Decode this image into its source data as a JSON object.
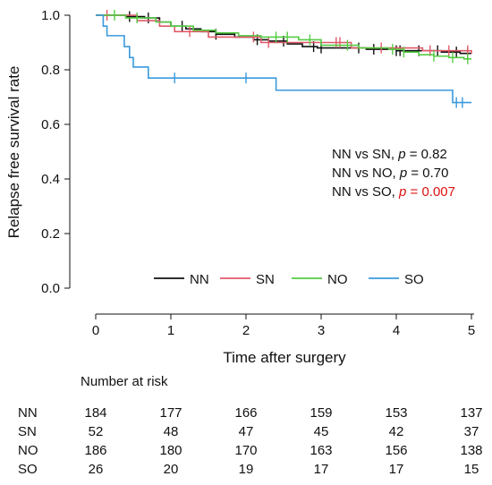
{
  "chart_data": {
    "type": "line",
    "xlabel": "Time after surgery",
    "ylabel": "Relapse free survival rate",
    "xlim": [
      0,
      5
    ],
    "ylim": [
      0,
      1
    ],
    "x_ticks": [
      "0",
      "1",
      "2",
      "3",
      "4",
      "5"
    ],
    "y_ticks": [
      "0.0",
      "0.2",
      "0.4",
      "0.6",
      "0.8",
      "1.0"
    ],
    "grid": false,
    "legend_position": "bottom",
    "series": [
      {
        "name": "NN",
        "color": "#111111",
        "points": [
          [
            0,
            1.0
          ],
          [
            0.35,
            1.0
          ],
          [
            0.4,
            0.995
          ],
          [
            0.65,
            0.99
          ],
          [
            0.85,
            0.975
          ],
          [
            1.0,
            0.96
          ],
          [
            1.2,
            0.95
          ],
          [
            1.4,
            0.94
          ],
          [
            1.6,
            0.93
          ],
          [
            1.85,
            0.92
          ],
          [
            2.1,
            0.91
          ],
          [
            2.3,
            0.905
          ],
          [
            2.55,
            0.895
          ],
          [
            2.75,
            0.885
          ],
          [
            2.95,
            0.88
          ],
          [
            3.3,
            0.88
          ],
          [
            3.6,
            0.875
          ],
          [
            3.85,
            0.875
          ],
          [
            4.0,
            0.87
          ],
          [
            4.2,
            0.87
          ],
          [
            4.6,
            0.865
          ],
          [
            4.85,
            0.86
          ],
          [
            5.0,
            0.86
          ]
        ],
        "censor": [
          0.45,
          0.7,
          1.15,
          1.6,
          2.15,
          2.5,
          2.9,
          3.0,
          3.5,
          3.7,
          4.0,
          4.05,
          4.3,
          4.55,
          4.8,
          4.95
        ]
      },
      {
        "name": "SN",
        "color": "#e05a6a",
        "points": [
          [
            0,
            1.0
          ],
          [
            0.3,
            1.0
          ],
          [
            0.55,
            0.98
          ],
          [
            0.85,
            0.96
          ],
          [
            1.05,
            0.94
          ],
          [
            1.45,
            0.94
          ],
          [
            1.5,
            0.92
          ],
          [
            2.15,
            0.92
          ],
          [
            2.2,
            0.9
          ],
          [
            3.35,
            0.9
          ],
          [
            3.4,
            0.88
          ],
          [
            4.3,
            0.88
          ],
          [
            4.35,
            0.87
          ],
          [
            4.95,
            0.87
          ],
          [
            5.0,
            0.86
          ]
        ],
        "censor": [
          0.15,
          1.25,
          2.1,
          2.3,
          3.25,
          3.2,
          3.8,
          4.45,
          4.7,
          4.95
        ]
      },
      {
        "name": "NO",
        "color": "#55cc44",
        "points": [
          [
            0,
            1.0
          ],
          [
            0.4,
            0.99
          ],
          [
            0.8,
            0.975
          ],
          [
            1.0,
            0.96
          ],
          [
            1.3,
            0.945
          ],
          [
            1.6,
            0.935
          ],
          [
            1.9,
            0.925
          ],
          [
            2.2,
            0.92
          ],
          [
            2.5,
            0.92
          ],
          [
            2.7,
            0.91
          ],
          [
            3.0,
            0.89
          ],
          [
            3.5,
            0.88
          ],
          [
            3.9,
            0.875
          ],
          [
            4.1,
            0.865
          ],
          [
            4.3,
            0.855
          ],
          [
            4.5,
            0.85
          ],
          [
            4.7,
            0.845
          ],
          [
            4.9,
            0.84
          ],
          [
            5.0,
            0.84
          ]
        ],
        "censor": [
          0.25,
          0.55,
          2.4,
          2.55,
          2.85,
          3.35,
          3.95,
          4.1,
          4.5,
          4.75,
          4.95
        ]
      },
      {
        "name": "SO",
        "color": "#3a99dd",
        "points": [
          [
            0,
            1.0
          ],
          [
            0.1,
            1.0
          ],
          [
            0.1,
            0.96
          ],
          [
            0.15,
            0.96
          ],
          [
            0.15,
            0.925
          ],
          [
            0.38,
            0.925
          ],
          [
            0.38,
            0.885
          ],
          [
            0.45,
            0.885
          ],
          [
            0.45,
            0.845
          ],
          [
            0.5,
            0.845
          ],
          [
            0.5,
            0.81
          ],
          [
            0.7,
            0.81
          ],
          [
            0.7,
            0.77
          ],
          [
            2.4,
            0.77
          ],
          [
            2.4,
            0.725
          ],
          [
            4.75,
            0.725
          ],
          [
            4.75,
            0.68
          ],
          [
            5.0,
            0.68
          ]
        ],
        "censor": [
          1.05,
          2.0,
          4.8,
          4.88
        ]
      }
    ],
    "annotations": [
      {
        "label": "NN vs SN, ",
        "p_label": "p",
        "p_value": " = 0.82",
        "color": "#111111"
      },
      {
        "label": "NN vs NO, ",
        "p_label": "p",
        "p_value": " = 0.70",
        "color": "#111111"
      },
      {
        "label": "NN vs SO, ",
        "p_label": "p",
        "p_value": " = 0.007",
        "color": "#dd1111"
      }
    ],
    "risk_table": {
      "title": "Number at risk",
      "rows": [
        {
          "group": "NN",
          "values": [
            "184",
            "177",
            "166",
            "159",
            "153",
            "137"
          ]
        },
        {
          "group": "SN",
          "values": [
            "52",
            "48",
            "47",
            "45",
            "42",
            "37"
          ]
        },
        {
          "group": "NO",
          "values": [
            "186",
            "180",
            "170",
            "163",
            "156",
            "138"
          ]
        },
        {
          "group": "SO",
          "values": [
            "26",
            "20",
            "19",
            "17",
            "17",
            "15"
          ]
        }
      ]
    }
  }
}
